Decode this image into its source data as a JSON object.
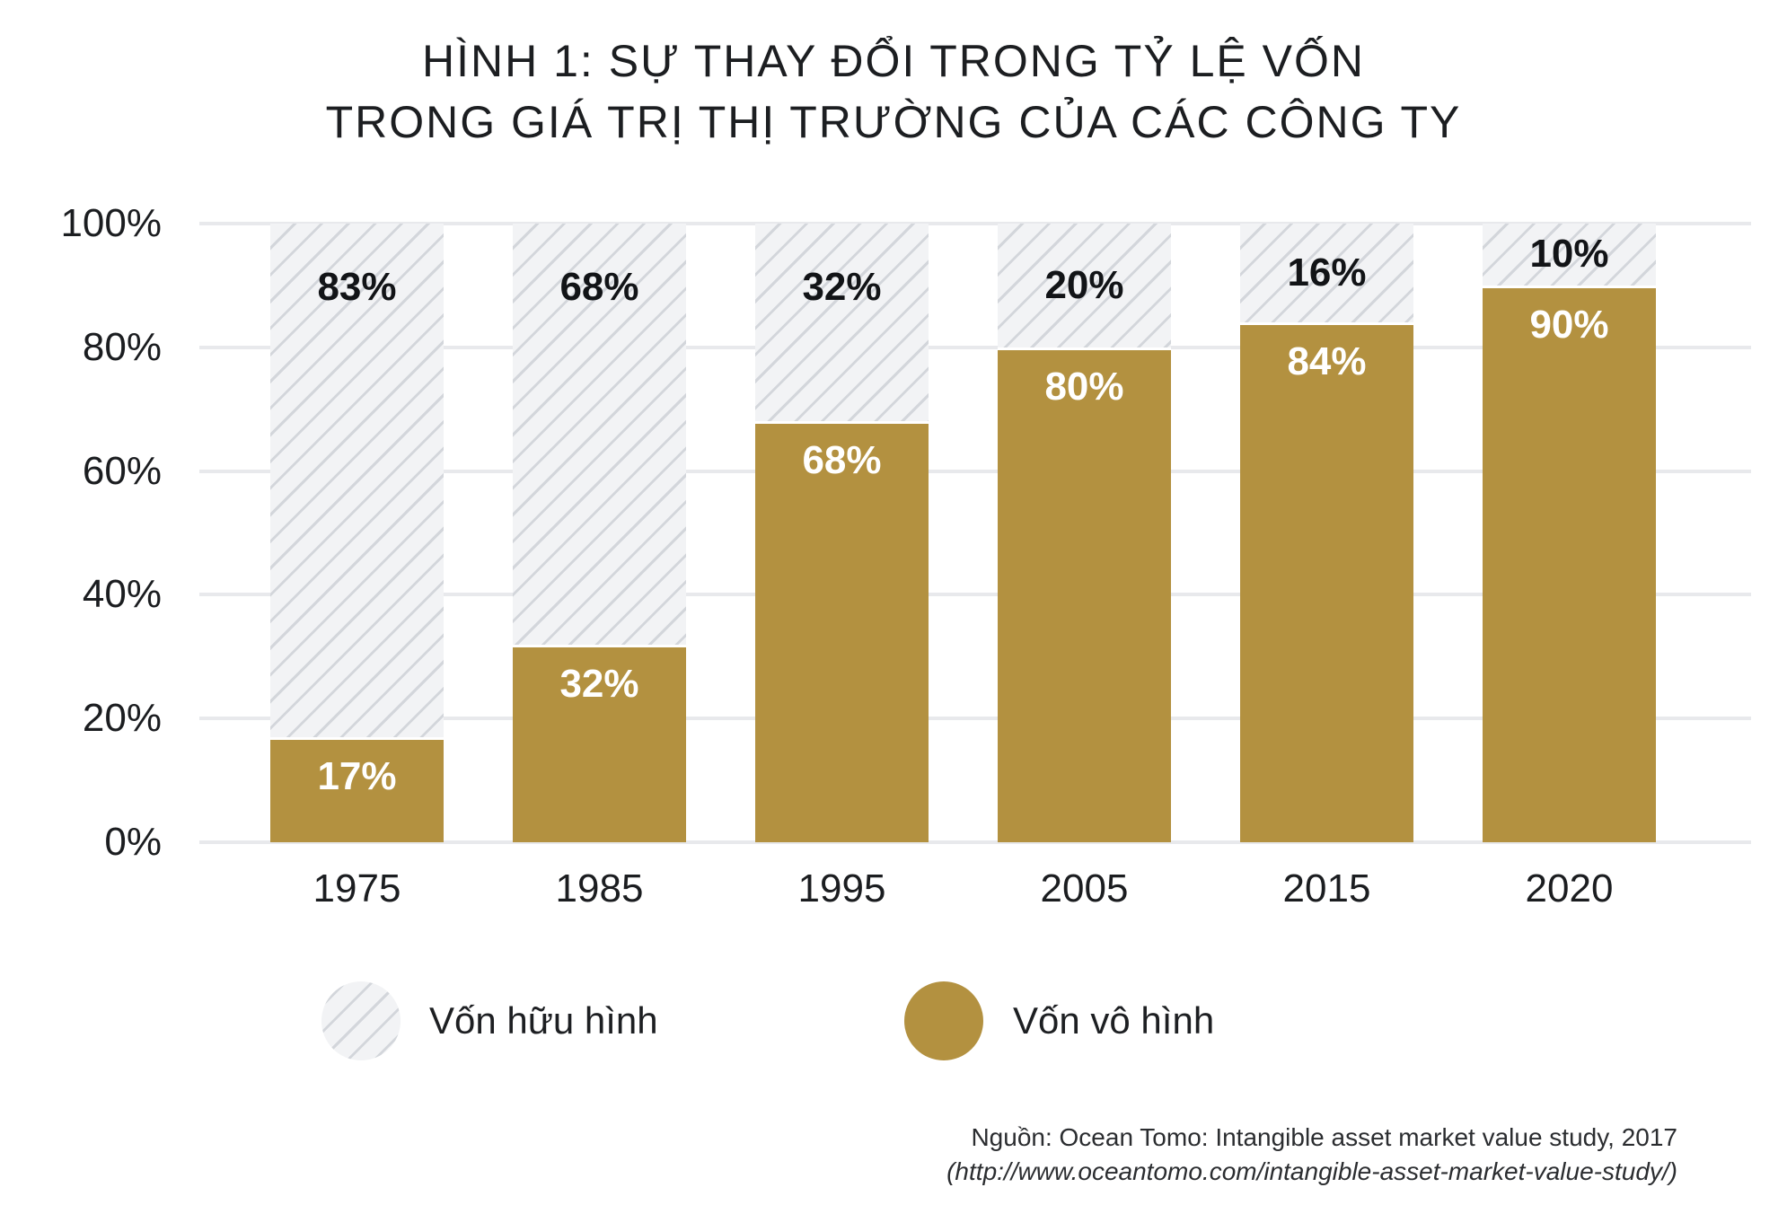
{
  "title": {
    "line1": "HÌNH 1: SỰ THAY ĐỔI TRONG TỶ LỆ VỐN",
    "line2": "TRONG GIÁ TRỊ THỊ TRƯỜNG CỦA CÁC CÔNG TY"
  },
  "chart_data": {
    "type": "bar",
    "stacked": true,
    "title": "HÌNH 1: SỰ THAY ĐỔI TRONG TỶ LỆ VỐN TRONG GIÁ TRỊ THỊ TRƯỜNG CỦA CÁC CÔNG TY",
    "categories": [
      "1975",
      "1985",
      "1995",
      "2005",
      "2015",
      "2020"
    ],
    "series": [
      {
        "name": "Vốn hữu hình",
        "style": "hatched",
        "values": [
          83,
          68,
          32,
          20,
          16,
          10
        ]
      },
      {
        "name": "Vốn vô hình",
        "style": "solid",
        "values": [
          17,
          32,
          68,
          80,
          84,
          90
        ]
      }
    ],
    "value_suffix": "%",
    "y_ticks": [
      "100%",
      "80%",
      "60%",
      "40%",
      "20%",
      "0%"
    ],
    "ylim": [
      0,
      100
    ],
    "grid": true,
    "legend_position": "bottom"
  },
  "legend": {
    "items": [
      {
        "label": "Vốn hữu hình",
        "swatch": "hatched-circle"
      },
      {
        "label": "Vốn vô hình",
        "swatch": "gold-circle"
      }
    ]
  },
  "source": {
    "line1": "Nguồn: Ocean Tomo: Intangible asset market value study, 2017",
    "line2": "(http://www.oceantomo.com/intangible-asset-market-value-study/)"
  },
  "colors": {
    "gold": "#b39140",
    "hatch_background": "#f2f3f5",
    "hatch_line": "#d3d6db",
    "gridline": "#e8e9ec",
    "label_dark": "#121417",
    "label_light": "#ffffff"
  }
}
